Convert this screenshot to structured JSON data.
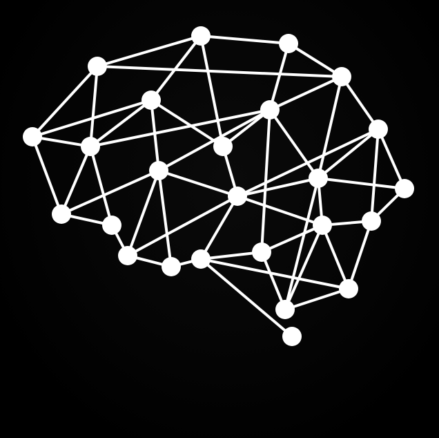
{
  "illustration": {
    "subject": "brain-network-icon",
    "colors": {
      "background": "#000000",
      "stroke": "#ffffff",
      "node": "#ffffff"
    }
  }
}
